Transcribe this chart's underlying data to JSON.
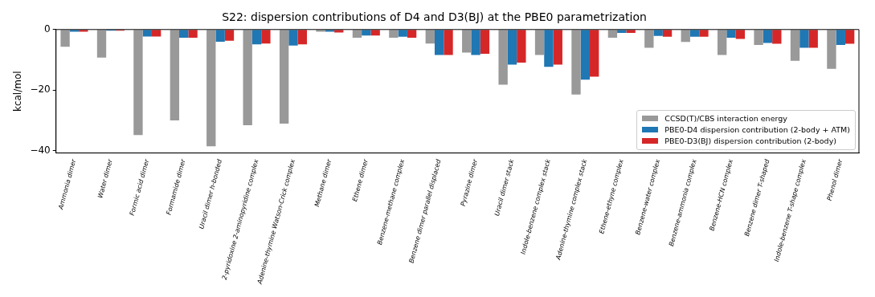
{
  "chart_data": {
    "type": "bar",
    "title": "S22: dispersion contributions of D4 and D3(BJ) at the PBE0 parametrization",
    "ylabel": "kcal/mol",
    "categories": [
      "Ammonia dimer",
      "Water dimer",
      "Formic acid dimer",
      "Formamide dimer",
      "Uracil dimer h-bonded",
      "2-pyridoxine 2-aminopyridine complex",
      "Adenine-thymine Watson-Crick complex",
      "Methane dimer",
      "Ethene dimer",
      "Benzene-methane complex",
      "Benzene dimer parallel displaced",
      "Pyrazine dimer",
      "Uracil dimer stack",
      "Indole-benzene complex stack",
      "Adenine-thymine complex stack",
      "Ethene-ethyne complex",
      "Benzene-water complex",
      "Benzene-ammonia complex",
      "Benzene-HCN complex",
      "Benzene dimer T-shaped",
      "Indole-benzene T-shape complex",
      "Phenol dimer"
    ],
    "series": [
      {
        "name": "CCSD(T)/CBS interaction energy",
        "color": "#999999",
        "values": [
          -5.7,
          -9.3,
          -34.9,
          -30.0,
          -38.6,
          -31.6,
          -31.1,
          -0.7,
          -2.7,
          -2.7,
          -4.6,
          -7.6,
          -18.2,
          -8.4,
          -21.5,
          -2.7,
          -6.0,
          -4.1,
          -8.4,
          -5.1,
          -10.3,
          -13.0
        ]
      },
      {
        "name": "PBE0-D4 dispersion contribution (2-body + ATM)",
        "color": "#1f77b4",
        "values": [
          -0.7,
          -0.4,
          -2.3,
          -2.7,
          -4.0,
          -4.9,
          -5.3,
          -0.7,
          -2.0,
          -2.4,
          -8.4,
          -8.4,
          -11.6,
          -12.3,
          -16.6,
          -1.1,
          -2.1,
          -2.4,
          -2.7,
          -4.4,
          -6.0,
          -5.1
        ]
      },
      {
        "name": "PBE0-D3(BJ) dispersion contribution (2-body)",
        "color": "#d62728",
        "values": [
          -0.7,
          -0.4,
          -2.3,
          -2.7,
          -3.7,
          -4.6,
          -4.9,
          -1.0,
          -2.0,
          -2.7,
          -8.4,
          -8.0,
          -10.9,
          -11.6,
          -15.6,
          -1.1,
          -2.4,
          -2.4,
          -3.1,
          -4.7,
          -6.0,
          -4.7
        ]
      }
    ],
    "ylim": [
      -40.8,
      0
    ],
    "yticks": [
      0,
      {
        "value": -20,
        "label": "−20"
      },
      {
        "value": -40,
        "label": "−40"
      }
    ],
    "grid": false,
    "legend": "bottom right"
  }
}
